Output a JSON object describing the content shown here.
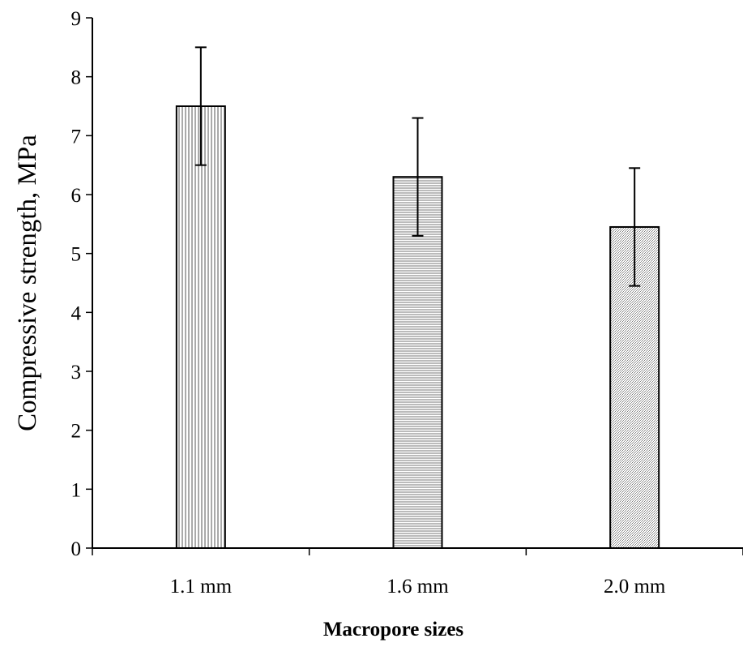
{
  "chart_data": {
    "type": "bar",
    "title": "",
    "xlabel": "Macropore sizes",
    "ylabel": "Compressive strength, MPa",
    "categories": [
      "1.1 mm",
      "1.6 mm",
      "2.0 mm"
    ],
    "values": [
      7.5,
      6.3,
      5.45
    ],
    "error": [
      1.0,
      1.0,
      1.0
    ],
    "ylim": [
      0,
      9
    ],
    "yticks": [
      0,
      1,
      2,
      3,
      4,
      5,
      6,
      7,
      8,
      9
    ],
    "grid": false,
    "legend": "none",
    "bar_fill_patterns": [
      "vertical-hatch",
      "horizontal-hatch",
      "dotted"
    ]
  }
}
